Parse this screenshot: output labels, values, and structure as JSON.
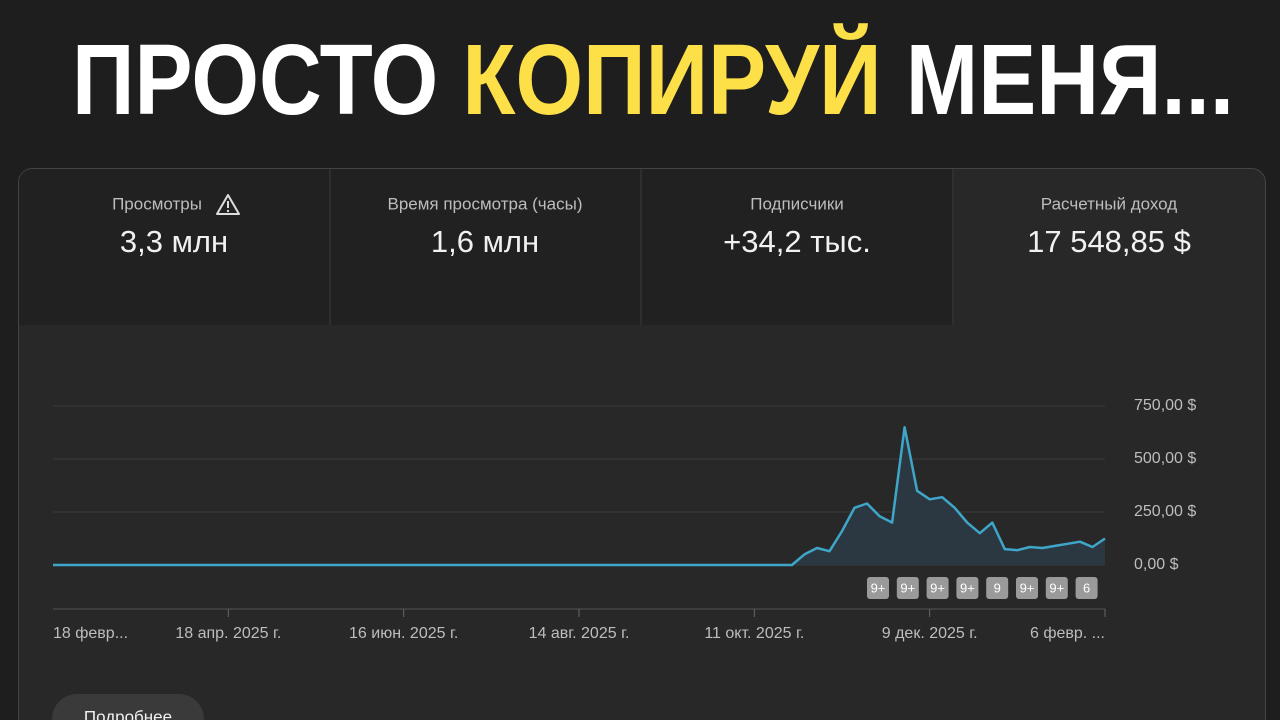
{
  "headline": [
    "ПРОСТО",
    "КОПИРУЙ",
    "МЕНЯ..."
  ],
  "stats": [
    {
      "label": "Просмотры",
      "value": "3,3 млн"
    },
    {
      "label": "Время просмотра (часы)",
      "value": "1,6 млн"
    },
    {
      "label": "Подписчики",
      "value": "+34,2 тыс."
    },
    {
      "label": "Расчетный доход",
      "value": "17 548,85 $"
    }
  ],
  "chart_data": {
    "type": "line",
    "categories": [
      "18 февр...",
      null,
      null,
      null,
      null,
      null,
      null,
      null,
      null,
      null,
      null,
      null,
      null,
      null,
      "18 апр. 2025 г.",
      null,
      null,
      null,
      null,
      null,
      null,
      null,
      null,
      null,
      null,
      null,
      null,
      null,
      "16 июн. 2025 г.",
      null,
      null,
      null,
      null,
      null,
      null,
      null,
      null,
      null,
      null,
      null,
      null,
      null,
      "14 авг. 2025 г.",
      null,
      null,
      null,
      null,
      null,
      null,
      null,
      null,
      null,
      null,
      null,
      null,
      null,
      "11 окт. 2025 г.",
      null,
      null,
      null,
      null,
      null,
      null,
      null,
      null,
      null,
      null,
      null,
      null,
      null,
      "9 дек. 2025 г.",
      null,
      null,
      null,
      null,
      null,
      null,
      null,
      null,
      null,
      null,
      null,
      null,
      null,
      "6 февр. ..."
    ],
    "series": [
      {
        "name": "Расчетный доход",
        "color": "#3ea6c9",
        "values": [
          0,
          0,
          0,
          0,
          0,
          0,
          0,
          0,
          0,
          0,
          0,
          0,
          0,
          0,
          0,
          0,
          0,
          0,
          0,
          0,
          0,
          0,
          0,
          0,
          0,
          0,
          0,
          0,
          0,
          0,
          0,
          0,
          0,
          0,
          0,
          0,
          0,
          0,
          0,
          0,
          0,
          0,
          0,
          0,
          0,
          0,
          0,
          0,
          0,
          0,
          0,
          0,
          0,
          0,
          0,
          0,
          0,
          0,
          0,
          0,
          50,
          80,
          65,
          160,
          270,
          290,
          230,
          200,
          650,
          350,
          310,
          320,
          270,
          200,
          150,
          200,
          75,
          70,
          85,
          80,
          90,
          100,
          110,
          85,
          125
        ]
      }
    ],
    "ylim": [
      0,
      750
    ],
    "yticks": [
      {
        "value": 0,
        "label": "0,00 $"
      },
      {
        "value": 250,
        "label": "250,00 $"
      },
      {
        "value": 500,
        "label": "500,00 $"
      },
      {
        "value": 750,
        "label": "750,00 $"
      }
    ],
    "grid": true,
    "annotations": [
      "9+",
      "9+",
      "9+",
      "9+",
      "9",
      "9+",
      "9+",
      "6"
    ]
  },
  "button": "Подробнее"
}
